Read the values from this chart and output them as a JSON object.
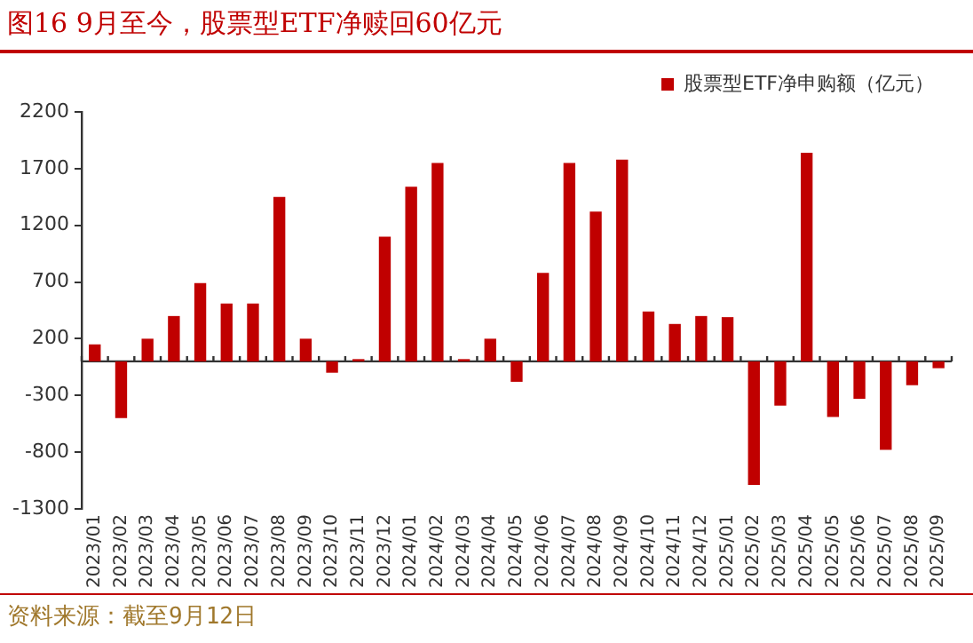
{
  "chart_data": {
    "type": "bar",
    "title": "图16 9月至今，股票型ETF净赎回60亿元",
    "categories": [
      "2023/01",
      "2023/02",
      "2023/03",
      "2023/04",
      "2023/05",
      "2023/06",
      "2023/07",
      "2023/08",
      "2023/09",
      "2023/10",
      "2023/11",
      "2023/12",
      "2024/01",
      "2024/02",
      "2024/03",
      "2024/04",
      "2024/05",
      "2024/06",
      "2024/07",
      "2024/08",
      "2024/09",
      "2024/10",
      "2024/11",
      "2024/12",
      "2025/01",
      "2025/02",
      "2025/03",
      "2025/04",
      "2025/05",
      "2025/06",
      "2025/07",
      "2025/08",
      "2025/09"
    ],
    "series": [
      {
        "name": "股票型ETF净申购额（亿元）",
        "color": "#c00000",
        "values": [
          150,
          -500,
          200,
          400,
          690,
          510,
          510,
          1450,
          200,
          -100,
          20,
          1100,
          1540,
          1750,
          20,
          200,
          -180,
          780,
          1750,
          1320,
          1780,
          440,
          330,
          400,
          390,
          -1090,
          -390,
          1840,
          -490,
          -330,
          -780,
          -210,
          -60
        ]
      }
    ],
    "ylim": [
      -1300,
      2200
    ],
    "yticks": [
      -1300,
      -800,
      -300,
      200,
      700,
      1200,
      1700,
      2200
    ],
    "grid": false,
    "legend": "top",
    "annotations": [
      "资料来源：截至9月12日"
    ]
  }
}
